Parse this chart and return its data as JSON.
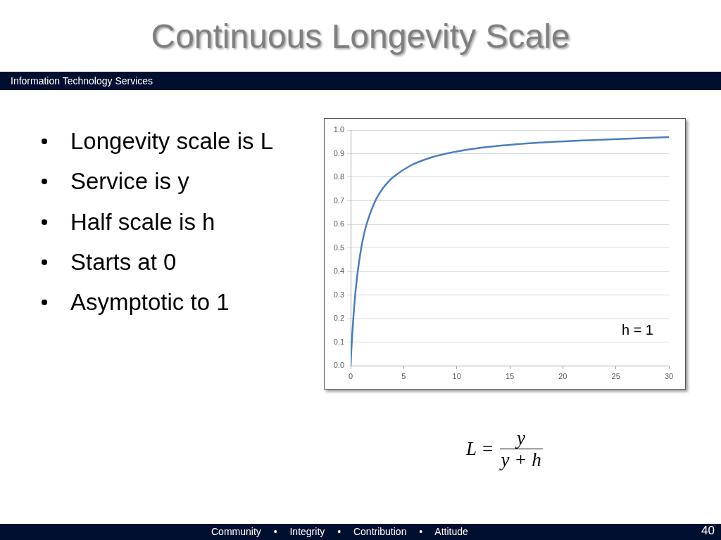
{
  "chart_data": {
    "type": "line",
    "title": "Continuous Longevity Scale",
    "subtitle": "Information Technology Services",
    "x": [
      0,
      0.05,
      0.11,
      0.25,
      0.43,
      0.67,
      1,
      1.22,
      1.5,
      2.33,
      3,
      3.55,
      4,
      5.67,
      7.33,
      9,
      11.5,
      15.7,
      19,
      24,
      30
    ],
    "series": [
      {
        "color": "#4a7ebb",
        "values": [
          0,
          0.05,
          0.1,
          0.2,
          0.3,
          0.4,
          0.5,
          0.55,
          0.6,
          0.7,
          0.75,
          0.78,
          0.8,
          0.85,
          0.88,
          0.9,
          0.92,
          0.94,
          0.95,
          0.96,
          0.97
        ]
      }
    ],
    "xlim": [
      0,
      30
    ],
    "xticks": [
      0,
      5,
      10,
      15,
      20,
      25,
      30
    ],
    "ylim": [
      0,
      1
    ],
    "yticks": [
      {
        "value": 0,
        "label": "0.0"
      },
      0.1,
      0.2,
      0.3,
      0.4,
      0.5,
      0.6,
      0.7,
      0.8,
      0.9,
      {
        "value": 1,
        "label": "1.0"
      }
    ],
    "grid": "y",
    "marker": "none",
    "line_style": "solid",
    "annotations": [
      "Longevity scale is L",
      "Service is y",
      "Half scale is h",
      "Starts at 0",
      "Asymptotic to 1",
      "h = 1",
      "L =",
      "y",
      "y + h",
      "Community • Integrity • Contribution • Attitude",
      "40"
    ]
  }
}
